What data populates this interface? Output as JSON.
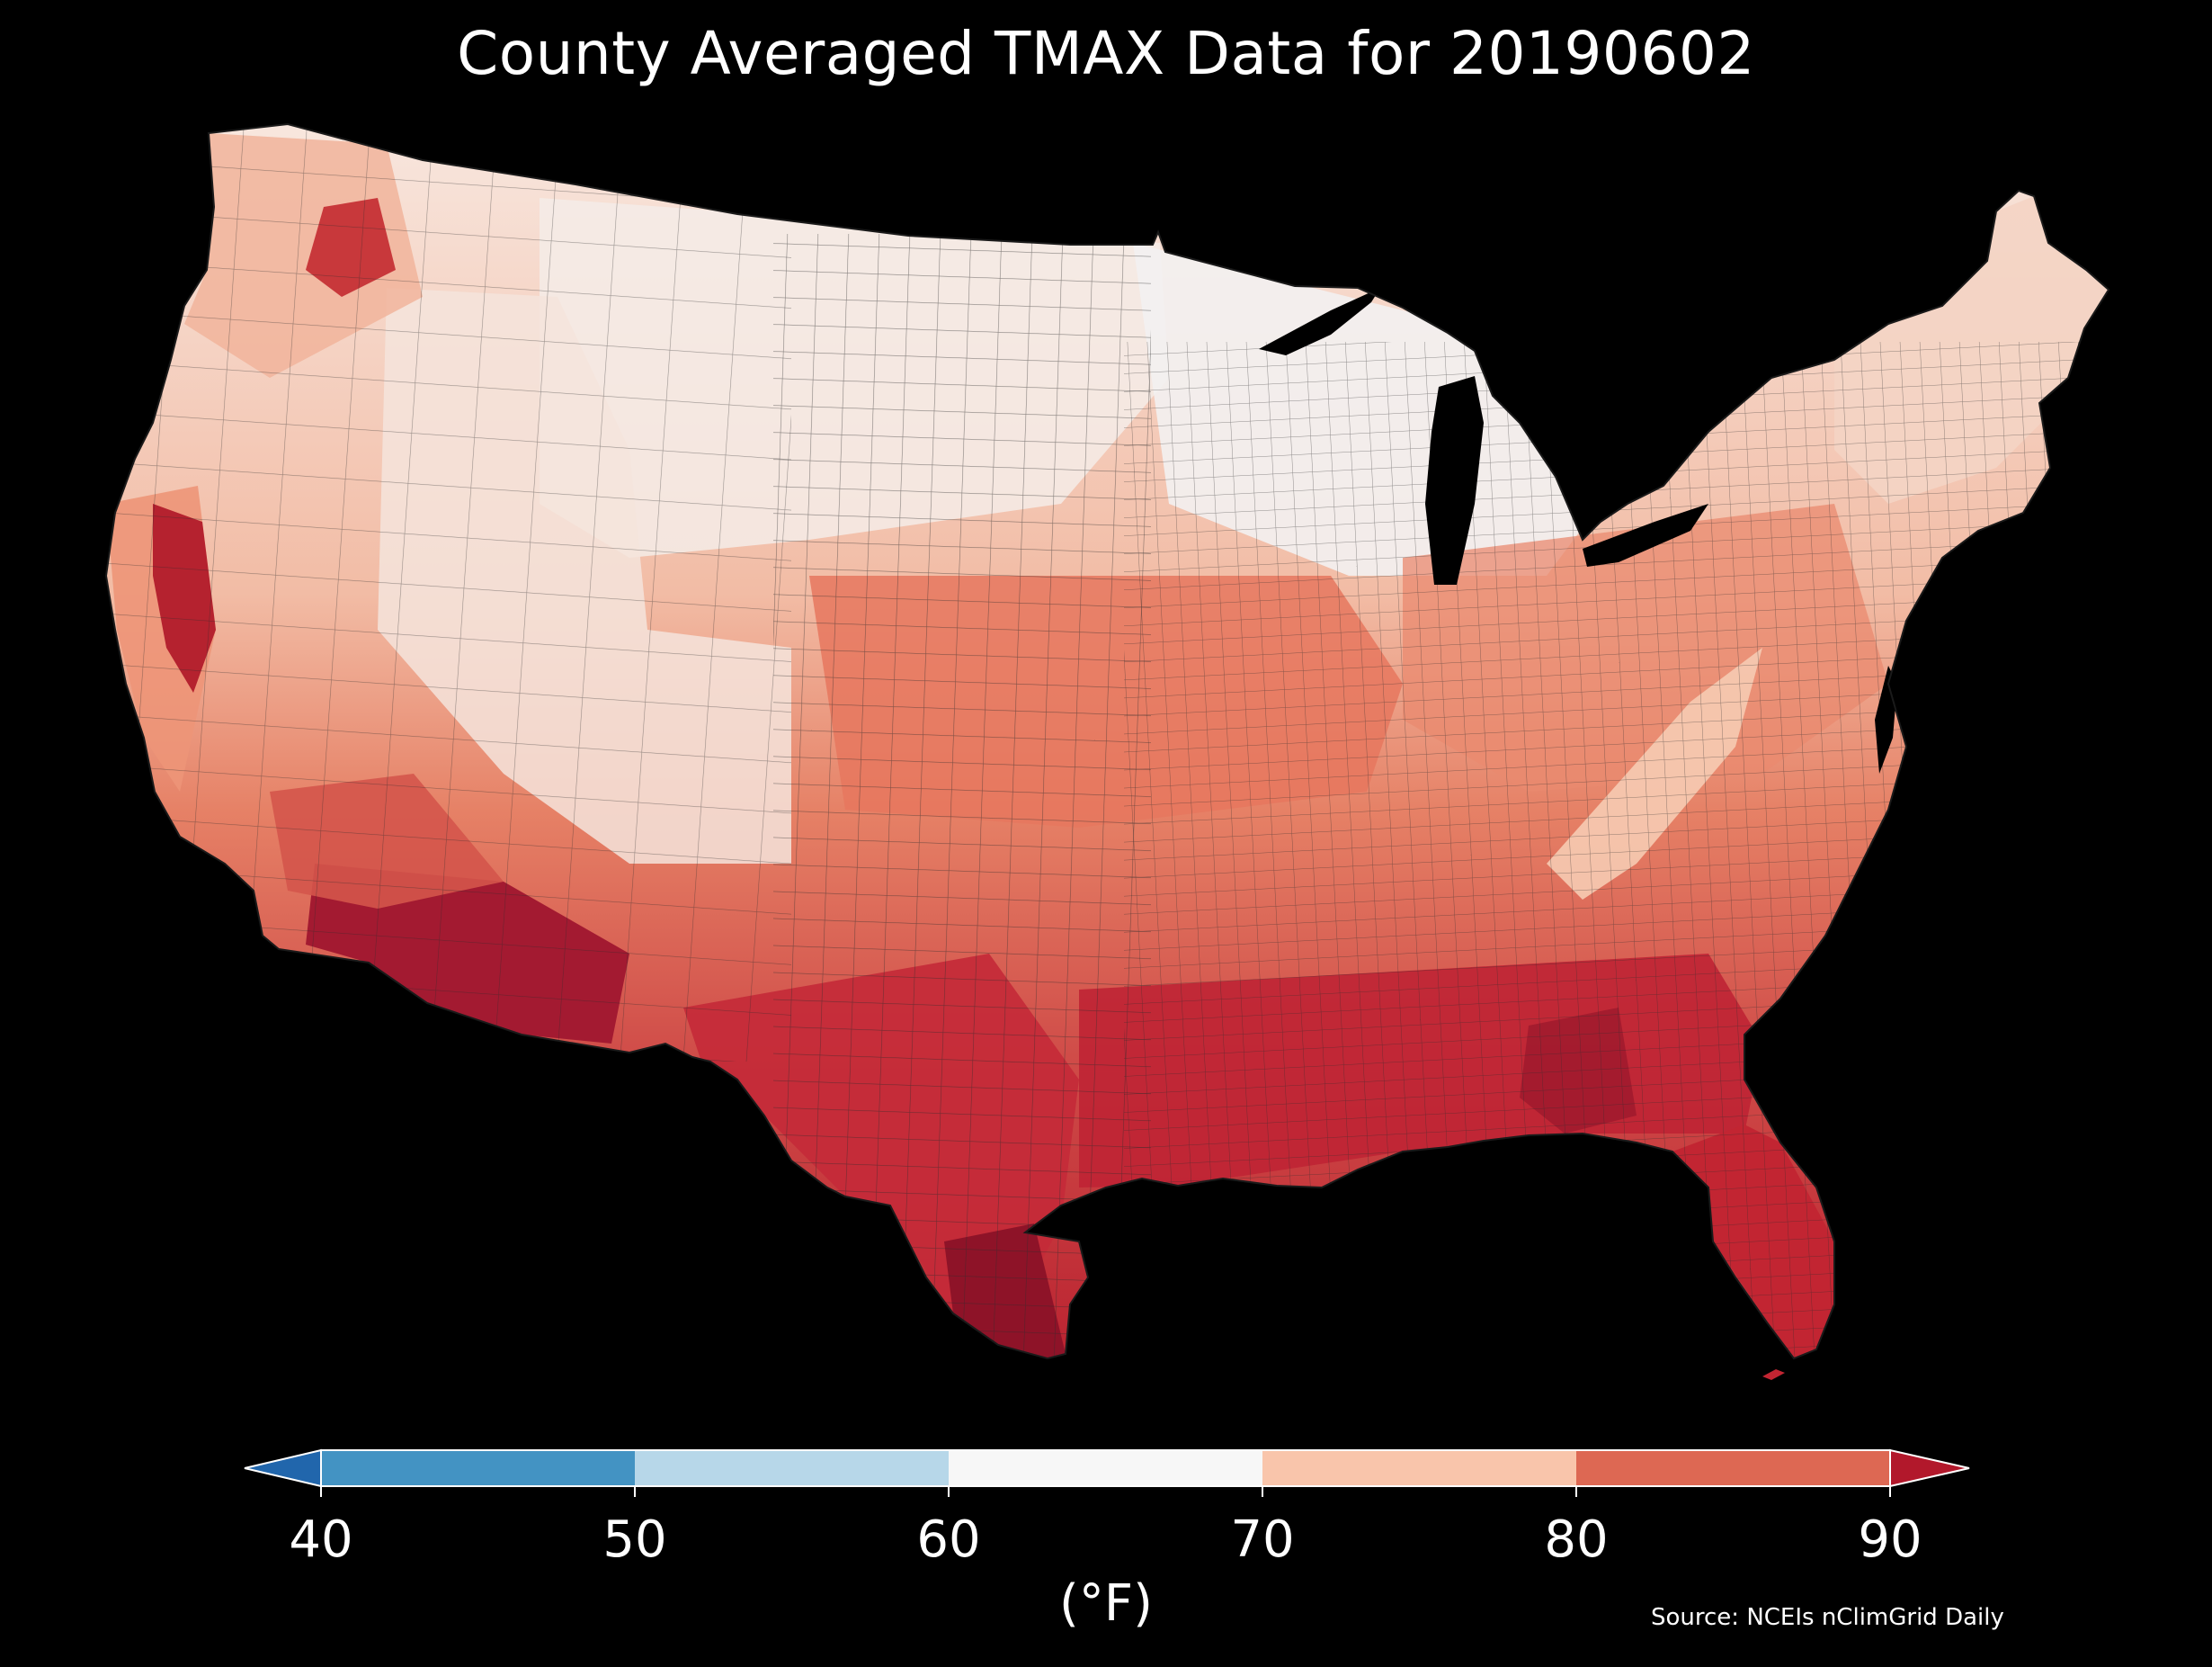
{
  "title": "County Averaged TMAX Data for 20190602",
  "source": "Source: NCEIs nClimGrid Daily",
  "colorbar": {
    "units_label": "(°F)",
    "ticks": [
      "40",
      "50",
      "60",
      "70",
      "80",
      "90"
    ],
    "bins": [
      {
        "from": 40,
        "to": 50,
        "color": "#4393c3"
      },
      {
        "from": 50,
        "to": 60,
        "color": "#b7d7e9"
      },
      {
        "from": 60,
        "to": 70,
        "color": "#f7f7f7"
      },
      {
        "from": 70,
        "to": 80,
        "color": "#f9c5ab"
      },
      {
        "from": 80,
        "to": 90,
        "color": "#dd6853"
      }
    ],
    "under_color": "#2166ac",
    "over_color": "#b2182b",
    "extend": "both"
  },
  "map": {
    "region": "contiguous United States",
    "unit_level": "county",
    "background": "#000000",
    "border_color": "#2b2b2b",
    "water_color": "#000000",
    "regional_fills": {
      "north_central_plains": "#f4ece8",
      "upper_midwest": "#f3f2f2",
      "intermountain_west": "#f4e9e4",
      "northern_rockies": "#f8d2bd",
      "pacific_coast": "#f09c80",
      "central_valley_ca": "#c8343a",
      "central_plains": "#e9826a",
      "ohio_valley": "#e98b71",
      "mid_atlantic": "#e98a70",
      "new_england": "#f4cbb6",
      "appalachia": "#f5c6ad",
      "southwest_desert": "#a01830",
      "texas": "#c82b38",
      "gulf_coast": "#c02433",
      "southeast": "#c2283a",
      "florida": "#c32633"
    }
  }
}
